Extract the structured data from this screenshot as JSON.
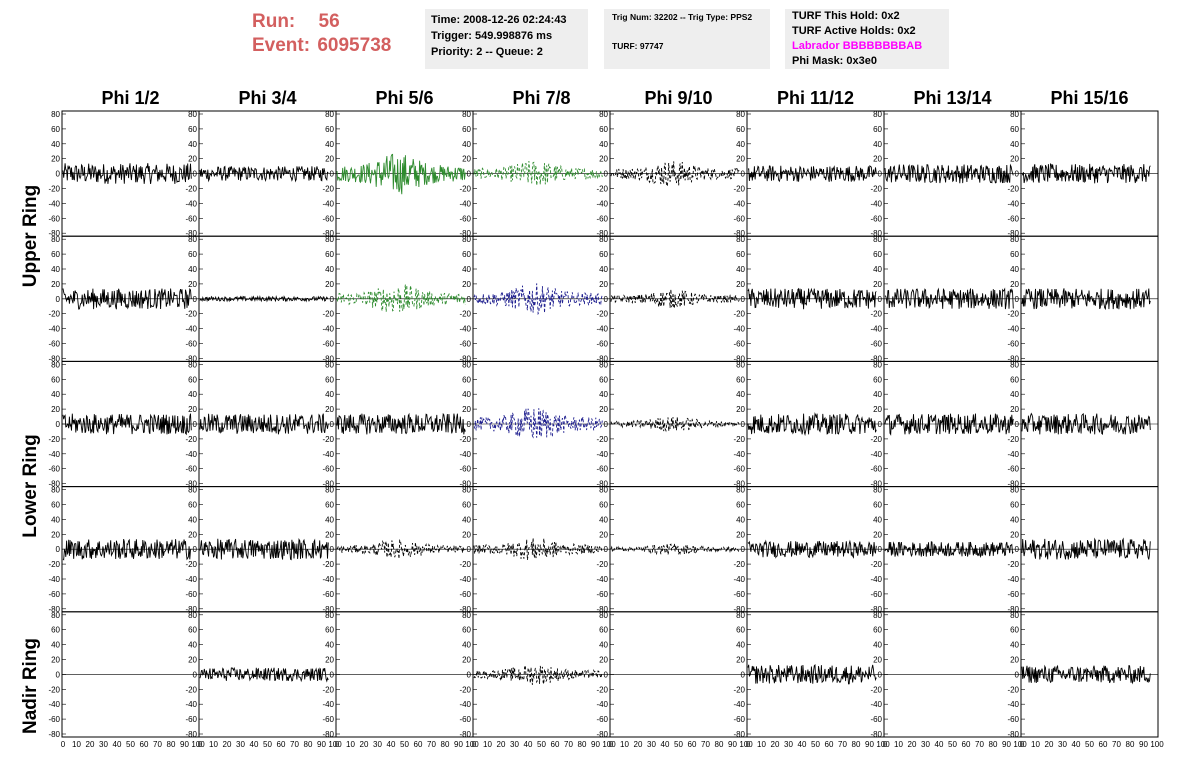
{
  "run": {
    "run_label": "Run:",
    "run_value": "56",
    "event_label": "Event:",
    "event_value": "6095738",
    "color": "#d35f5f"
  },
  "time_box": {
    "time": "Time: 2008-12-26 02:24:43",
    "trigger": "Trigger: 549.998876 ms",
    "priority": "Priority: 2 -- Queue: 2"
  },
  "trig_box": {
    "trig": "Trig Num: 32202 -- Trig Type: PPS2",
    "turf": "TURF: 97747"
  },
  "turf_box": {
    "this_hold": "TURF This Hold: 0x2",
    "active_holds": "TURF Active Holds: 0x2",
    "labrador": "Labrador BBBBBBBBAB",
    "labrador_color": "#ff00ff",
    "phi_mask": "Phi Mask: 0x3e0"
  },
  "phi_headers": [
    "Phi 1/2",
    "Phi 3/4",
    "Phi 5/6",
    "Phi 7/8",
    "Phi 9/10",
    "Phi 11/12",
    "Phi 13/14",
    "Phi 15/16"
  ],
  "ring_labels": [
    "Upper Ring",
    "Lower Ring",
    "Nadir Ring"
  ],
  "chart_data": {
    "type": "line",
    "layout": "grid 5 rows x 8 columns of waveform panels",
    "y_ticks": [
      "80",
      "60",
      "40",
      "20",
      "0",
      "-20",
      "-40",
      "-60",
      "-80"
    ],
    "ylim": [
      -80,
      80
    ],
    "xlim": [
      0,
      100
    ],
    "x_tick_text": "0 10 20 30 40 50 60 70 80 90 100",
    "x_tick_labels": [
      "0",
      "10",
      "20",
      "30",
      "40",
      "50",
      "60",
      "70",
      "80",
      "90",
      "100"
    ],
    "line_styles": {
      "solid": "#000000",
      "green": "#2e8b2e",
      "blue": "#1f1f8f",
      "dashed": "#000000"
    },
    "panels": [
      [
        "solid",
        "solid",
        "green",
        "green-dashed",
        "dashed",
        "solid",
        "solid",
        "solid"
      ],
      [
        "solid",
        "solid",
        "green-dashed",
        "blue-dashed",
        "dashed",
        "solid",
        "solid",
        "solid"
      ],
      [
        "solid",
        "solid",
        "solid",
        "blue-dashed",
        "dashed",
        "solid",
        "solid",
        "solid"
      ],
      [
        "solid",
        "solid",
        "dashed",
        "dashed",
        "dashed",
        "solid",
        "solid",
        "solid"
      ],
      [
        "flat",
        "solid",
        "flat",
        "dashed",
        "flat",
        "solid",
        "flat",
        "solid"
      ]
    ],
    "amplitude": [
      [
        14,
        10,
        22,
        14,
        14,
        11,
        13,
        13
      ],
      [
        14,
        3,
        16,
        16,
        10,
        14,
        14,
        14
      ],
      [
        14,
        14,
        14,
        18,
        8,
        14,
        14,
        14
      ],
      [
        14,
        14,
        10,
        12,
        6,
        11,
        10,
        14
      ],
      [
        0,
        9,
        0,
        11,
        0,
        13,
        0,
        12
      ]
    ]
  }
}
